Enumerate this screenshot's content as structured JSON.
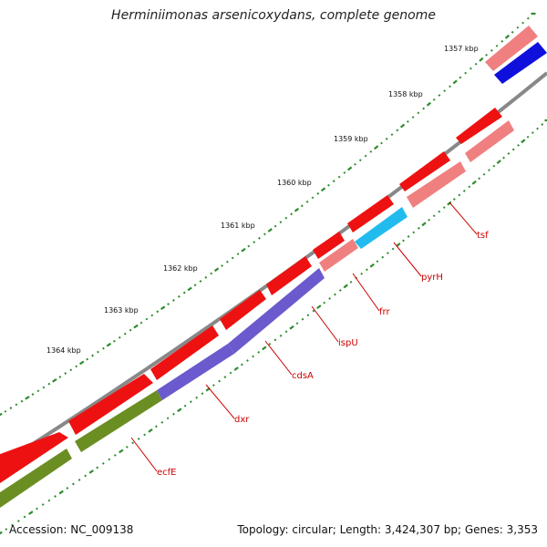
{
  "title": "Herminiimonas arsenicoxydans, complete genome",
  "footer": {
    "accession": "Accession: NC_009138",
    "summary": "Topology: circular; Length: 3,424,307 bp; Genes: 3,353"
  },
  "colors": {
    "backbone": "#888888",
    "tick": "#2e8b2e",
    "label": "#cc0000",
    "gene_red": "#ee1111",
    "gene_pink": "#f08080",
    "gene_blue": "#1010dd",
    "gene_cyan": "#22bbee",
    "gene_purple": "#6a5acd",
    "gene_olive": "#6b8e23"
  },
  "scale_labels": [
    "1357 kbp",
    "1358 kbp",
    "1359 kbp",
    "1360 kbp",
    "1361 kbp",
    "1362 kbp",
    "1363 kbp",
    "1364 kbp"
  ],
  "gene_labels": [
    "tsf",
    "pyrH",
    "frr",
    "ispU",
    "cdsA",
    "dxr",
    "ecfE"
  ]
}
